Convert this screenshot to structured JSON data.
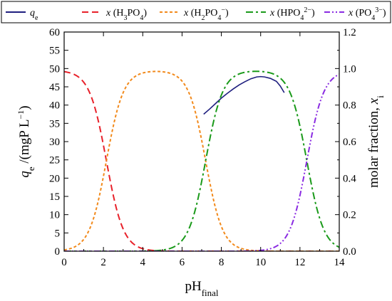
{
  "chart_data": {
    "type": "line",
    "x_axis": {
      "label_main": "pH",
      "label_sub": "final",
      "range": [
        0,
        14
      ],
      "ticks": [
        "0",
        "2",
        "4",
        "6",
        "8",
        "10",
        "12",
        "14"
      ]
    },
    "y_left": {
      "label_symbol": "q",
      "label_symbol_sub": "e",
      "label_unit": " /(mgP L",
      "label_unit_sup": "−1",
      "label_close": ")",
      "range": [
        0,
        60
      ],
      "ticks": [
        "0",
        "5",
        "10",
        "15",
        "20",
        "25",
        "30",
        "35",
        "40",
        "45",
        "50",
        "55",
        "60"
      ]
    },
    "y_right": {
      "label_main": "molar fraction, ",
      "label_var": "x",
      "label_var_sub": "i",
      "range": [
        0,
        1.2
      ],
      "ticks": [
        "0.0",
        "0.2",
        "0.4",
        "0.6",
        "0.8",
        "1.0",
        "1.2"
      ]
    },
    "grid": false,
    "legend": {
      "position": "top",
      "entries": [
        {
          "id": "qe",
          "color": "#1f1f7f",
          "dash": "solid",
          "prefix": "q",
          "prefix_sub": "e",
          "species": []
        },
        {
          "id": "h3po4",
          "color": "#e8212a",
          "dash": "dashed",
          "prefix": "x",
          "species": [
            [
              "(H",
              ""
            ],
            [
              "3",
              "sub"
            ],
            [
              "PO",
              ""
            ],
            [
              "4",
              "sub"
            ],
            [
              ")",
              ""
            ]
          ]
        },
        {
          "id": "h2po4",
          "color": "#f28a1c",
          "dash": "short-dash",
          "prefix": "x",
          "species": [
            [
              "(H",
              ""
            ],
            [
              "2",
              "sub"
            ],
            [
              "PO",
              ""
            ],
            [
              "4",
              "sub"
            ],
            [
              "−",
              "sup"
            ],
            [
              ")",
              ""
            ]
          ]
        },
        {
          "id": "hpo4",
          "color": "#1a9a1a",
          "dash": "dash-dot",
          "prefix": "x",
          "species": [
            [
              "(HPO",
              ""
            ],
            [
              "4",
              "sub"
            ],
            [
              "2−",
              "sup"
            ],
            [
              ")",
              ""
            ]
          ]
        },
        {
          "id": "po4",
          "color": "#8a2be2",
          "dash": "dash-dot-dot",
          "prefix": "x",
          "species": [
            [
              "(PO",
              ""
            ],
            [
              "4",
              "sub"
            ],
            [
              "3−",
              "sup"
            ],
            [
              ")",
              ""
            ]
          ]
        }
      ]
    },
    "series": [
      {
        "id": "qe",
        "axis": "left",
        "x": [
          7.1,
          7.4,
          7.7,
          8.0,
          8.3,
          8.6,
          8.9,
          9.2,
          9.5,
          9.8,
          10.0,
          10.2,
          10.5,
          10.8,
          11.0,
          11.2
        ],
        "y": [
          37.5,
          38.9,
          40.4,
          41.9,
          43.2,
          44.4,
          45.5,
          46.4,
          47.2,
          47.7,
          47.8,
          47.7,
          47.3,
          46.5,
          45.2,
          43.4
        ]
      },
      {
        "id": "h3po4",
        "axis": "right",
        "model": "phosphate-speciation",
        "species_index": 0,
        "x_range": [
          0,
          14
        ]
      },
      {
        "id": "h2po4",
        "axis": "right",
        "model": "phosphate-speciation",
        "species_index": 1,
        "x_range": [
          0,
          14
        ]
      },
      {
        "id": "hpo4",
        "axis": "right",
        "model": "phosphate-speciation",
        "species_index": 2,
        "x_range": [
          0,
          14
        ]
      },
      {
        "id": "po4",
        "axis": "right",
        "model": "phosphate-speciation",
        "species_index": 3,
        "x_range": [
          0,
          14
        ]
      }
    ],
    "pKa": [
      2.15,
      7.2,
      12.35
    ],
    "max_fraction": 0.99
  }
}
